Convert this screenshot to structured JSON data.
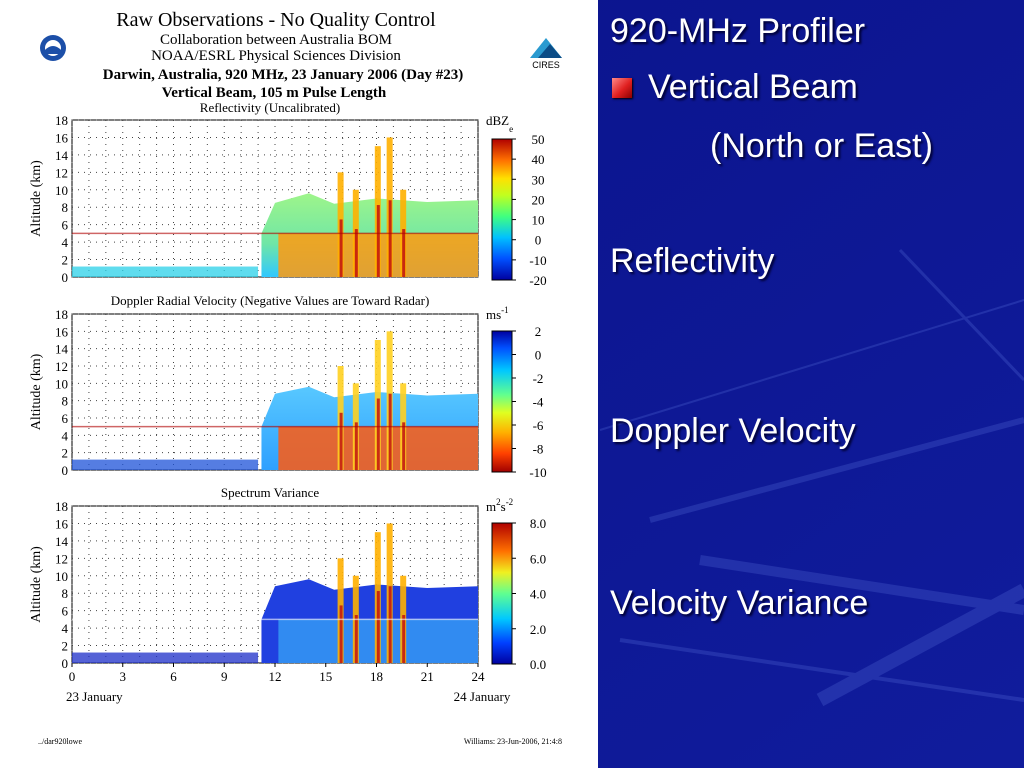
{
  "header": {
    "title": "Raw Observations - No Quality Control",
    "line2": "Collaboration between Australia BOM",
    "line3": "NOAA/ESRL Physical Sciences Division",
    "line4": "Darwin, Australia, 920 MHz, 23 January 2006 (Day #23)",
    "line5": "Vertical Beam, 105 m Pulse Length",
    "left_logo": "NOAA",
    "right_logo": "CIRES"
  },
  "footer": {
    "left": "../dar920lowe",
    "right": "Williams: 23-Jun-2006, 21:4:8"
  },
  "slide": {
    "title": "920-MHz Profiler",
    "bullet": "Vertical Beam",
    "bullet_sub": "(North or East)",
    "label1": "Reflectivity",
    "label2": "Doppler Velocity",
    "label3": "Velocity Variance",
    "bullet_color": "#e02020",
    "background_color": "#0c1590"
  },
  "chart_data": [
    {
      "type": "heatmap",
      "title": "Reflectivity (Uncalibrated)",
      "ylabel": "Altitude (km)",
      "ylim": [
        0,
        18
      ],
      "yticks": [
        "0",
        "2",
        "4",
        "6",
        "8",
        "10",
        "12",
        "14",
        "16",
        "18"
      ],
      "xlim": [
        0,
        24
      ],
      "colorbar_unit": "dBZ",
      "colorbar_unit_sub": "e",
      "colorbar_ticks": [
        "50",
        "40",
        "30",
        "20",
        "10",
        "0",
        "-10",
        "-20"
      ],
      "colorbar_range": [
        -20,
        50
      ],
      "grid": true
    },
    {
      "type": "heatmap",
      "title": "Doppler Radial Velocity (Negative Values are Toward Radar)",
      "ylabel": "Altitude (km)",
      "ylim": [
        0,
        18
      ],
      "yticks": [
        "0",
        "2",
        "4",
        "6",
        "8",
        "10",
        "12",
        "14",
        "16",
        "18"
      ],
      "xlim": [
        0,
        24
      ],
      "colorbar_unit": "ms",
      "colorbar_unit_sup": "-1",
      "colorbar_ticks": [
        "2",
        "0",
        "-2",
        "-4",
        "-6",
        "-8",
        "-10"
      ],
      "colorbar_range": [
        -10,
        2
      ],
      "grid": true
    },
    {
      "type": "heatmap",
      "title": "Spectrum Variance",
      "ylabel": "Altitude (km)",
      "ylim": [
        0,
        18
      ],
      "yticks": [
        "0",
        "2",
        "4",
        "6",
        "8",
        "10",
        "12",
        "14",
        "16",
        "18"
      ],
      "xlim": [
        0,
        24
      ],
      "xticks": [
        "0",
        "3",
        "6",
        "9",
        "12",
        "15",
        "18",
        "21",
        "24"
      ],
      "xdate_left": "23 January",
      "xdate_right": "24 January",
      "colorbar_unit": "m",
      "colorbar_unit_sup1": "2",
      "colorbar_unit_mid": "s",
      "colorbar_unit_sup2": "-2",
      "colorbar_ticks": [
        "8.0",
        "6.0",
        "4.0",
        "2.0",
        "0.0"
      ],
      "colorbar_range": [
        0,
        8
      ],
      "grid": true
    }
  ]
}
